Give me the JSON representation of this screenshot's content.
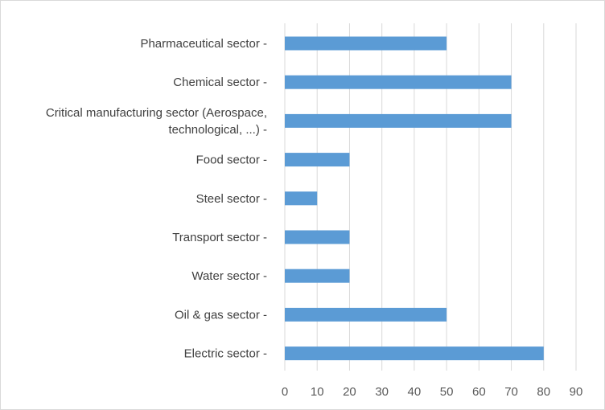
{
  "chart_data": {
    "type": "bar",
    "orientation": "horizontal",
    "categories": [
      "Pharmaceutical sector -",
      "Chemical sector -",
      "Critical manufacturing sector (Aerospace, technological, ...) -",
      "Food sector -",
      "Steel sector -",
      "Transport sector -",
      "Water sector -",
      "Oil & gas sector -",
      "Electric sector -"
    ],
    "category_lines": [
      [
        "Pharmaceutical sector -"
      ],
      [
        "Chemical sector -"
      ],
      [
        "Critical manufacturing sector (Aerospace,",
        "technological, ...) -"
      ],
      [
        "Food sector -"
      ],
      [
        "Steel sector -"
      ],
      [
        "Transport sector -"
      ],
      [
        "Water sector -"
      ],
      [
        "Oil & gas sector -"
      ],
      [
        "Electric sector -"
      ]
    ],
    "values": [
      50,
      70,
      70,
      20,
      10,
      20,
      20,
      50,
      80
    ],
    "xlim": [
      0,
      90
    ],
    "x_ticks": [
      "0",
      "10",
      "20",
      "30",
      "40",
      "50",
      "60",
      "70",
      "80",
      "90"
    ],
    "title": "",
    "xlabel": "",
    "ylabel": "",
    "grid": "vertical",
    "legend": "none",
    "bar_color": "#5b9bd5",
    "grid_color": "#d9d9d9"
  }
}
